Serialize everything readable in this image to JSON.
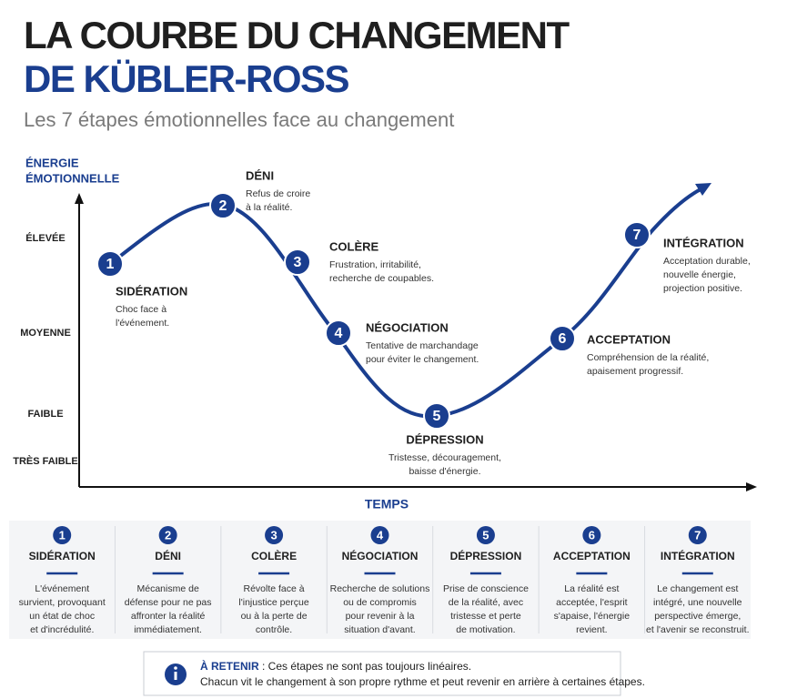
{
  "header": {
    "title_line1": "LA COURBE DU CHANGEMENT",
    "title_line2": "DE KÜBLER-ROSS",
    "subtitle": "Les 7 étapes émotionnelles face au changement"
  },
  "axes": {
    "y_label": [
      "ÉNERGIE",
      "ÉMOTIONNELLE"
    ],
    "y_levels": [
      "ÉLEVÉE",
      "MOYENNE",
      "FAIBLE",
      "TRÈS FAIBLE"
    ],
    "x_label": "TEMPS"
  },
  "stages": [
    {
      "number": 1,
      "name": "SIDÉRATION",
      "description": [
        "Choc face à",
        "l'événement."
      ]
    },
    {
      "number": 2,
      "name": "DÉNI",
      "description": [
        "Refus de croire",
        "à la réalité."
      ]
    },
    {
      "number": 3,
      "name": "COLÈRE",
      "description": [
        "Frustration, irritabilité,",
        "recherche de coupables."
      ]
    },
    {
      "number": 4,
      "name": "NÉGOCIATION",
      "description": [
        "Tentative de marchandage",
        "pour éviter le changement."
      ]
    },
    {
      "number": 5,
      "name": "DÉPRESSION",
      "description": [
        "Tristesse, découragement,",
        "baisse d'énergie."
      ]
    },
    {
      "number": 6,
      "name": "ACCEPTATION",
      "description": [
        "Compréhension de la réalité,",
        "apaisement progressif."
      ]
    },
    {
      "number": 7,
      "name": "INTÉGRATION",
      "description": [
        "Acceptation durable,",
        "nouvelle énergie,",
        "projection positive."
      ]
    }
  ],
  "cards": [
    {
      "number": 1,
      "name": "SIDÉRATION",
      "description": [
        "L'événement",
        "survient, provoquant",
        "un état de choc",
        "et d'incrédulité."
      ]
    },
    {
      "number": 2,
      "name": "DÉNI",
      "description": [
        "Mécanisme de",
        "défense pour ne pas",
        "affronter la réalité",
        "immédiatement."
      ]
    },
    {
      "number": 3,
      "name": "COLÈRE",
      "description": [
        "Révolte face à",
        "l'injustice perçue",
        "ou à la perte de",
        "contrôle."
      ]
    },
    {
      "number": 4,
      "name": "NÉGOCIATION",
      "description": [
        "Recherche de solutions",
        "ou de compromis",
        "pour revenir à la",
        "situation d'avant."
      ]
    },
    {
      "number": 5,
      "name": "DÉPRESSION",
      "description": [
        "Prise de conscience",
        "de la réalité, avec",
        "tristesse et perte",
        "de motivation."
      ]
    },
    {
      "number": 6,
      "name": "ACCEPTATION",
      "description": [
        "La réalité est",
        "acceptée, l'esprit",
        "s'apaise, l'énergie",
        "revient."
      ]
    },
    {
      "number": 7,
      "name": "INTÉGRATION",
      "description": [
        "Le changement est",
        "intégré, une nouvelle",
        "perspective émerge,",
        "et l'avenir se reconstruit."
      ]
    }
  ],
  "note": {
    "label": "À RETENIR",
    "line1": " : Ces étapes ne sont pas toujours linéaires.",
    "line2": "Chacun vit le changement à son propre rythme et peut revenir en arrière à certaines étapes."
  }
}
